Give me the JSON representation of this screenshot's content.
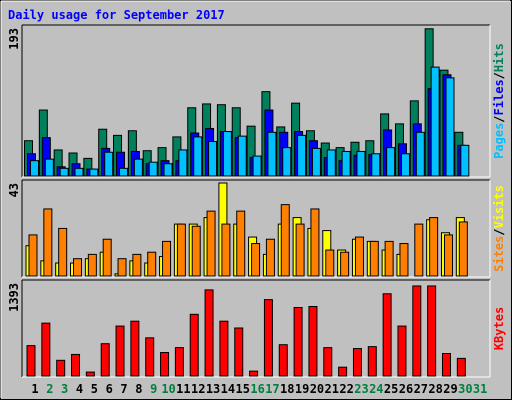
{
  "chart_data": [
    {
      "type": "bar",
      "title": "Daily usage for September 2017",
      "ylim": [
        0,
        193
      ],
      "yticks": [
        193
      ],
      "legend_separator": "/",
      "series": [
        {
          "name": "Pages",
          "color": "#00c0ff",
          "values": [
            20,
            22,
            10,
            10,
            9,
            31,
            10,
            22,
            18,
            16,
            34,
            51,
            45,
            58,
            52,
            26,
            57,
            37,
            53,
            36,
            34,
            32,
            32,
            29,
            37,
            29,
            57,
            142,
            128,
            40,
            0
          ]
        },
        {
          "name": "Files",
          "color": "#0000ff",
          "values": [
            29,
            50,
            12,
            16,
            9,
            36,
            31,
            32,
            16,
            20,
            20,
            56,
            62,
            58,
            50,
            24,
            86,
            57,
            58,
            46,
            24,
            20,
            27,
            28,
            60,
            42,
            68,
            114,
            132,
            40,
            0
          ]
        },
        {
          "name": "Hits",
          "color": "#00805c",
          "values": [
            46,
            86,
            34,
            30,
            23,
            61,
            53,
            59,
            33,
            37,
            51,
            89,
            94,
            93,
            89,
            65,
            110,
            64,
            95,
            59,
            43,
            37,
            44,
            46,
            81,
            68,
            98,
            192,
            138,
            57,
            0
          ]
        }
      ]
    },
    {
      "type": "bar",
      "ylim": [
        0,
        43
      ],
      "yticks": [
        43
      ],
      "legend_separator": "/",
      "series": [
        {
          "name": "Sites",
          "color": "#ff8000",
          "values": [
            19,
            31,
            22,
            8,
            10,
            17,
            8,
            10,
            11,
            16,
            24,
            23,
            30,
            24,
            30,
            15,
            17,
            33,
            24,
            31,
            12,
            11,
            18,
            16,
            16,
            15,
            24,
            27,
            19,
            25,
            0
          ]
        },
        {
          "name": "Visits",
          "color": "#ffff00",
          "values": [
            14,
            7,
            6,
            6,
            8,
            11,
            1,
            7,
            6,
            9,
            24,
            24,
            27,
            43,
            24,
            18,
            10,
            24,
            27,
            22,
            21,
            12,
            17,
            16,
            12,
            10,
            0,
            26,
            20,
            27,
            0
          ]
        }
      ]
    },
    {
      "type": "bar",
      "ylim": [
        0,
        1393
      ],
      "yticks": [
        1393
      ],
      "categories": [
        1,
        2,
        3,
        4,
        5,
        6,
        7,
        8,
        9,
        10,
        11,
        12,
        13,
        14,
        15,
        16,
        17,
        18,
        19,
        20,
        21,
        22,
        23,
        24,
        25,
        26,
        27,
        28,
        29,
        30,
        31
      ],
      "category_colors": [
        "#000000",
        "#008040",
        "#008040",
        "#000000",
        "#000000",
        "#000000",
        "#000000",
        "#000000",
        "#008040",
        "#008040",
        "#000000",
        "#000000",
        "#000000",
        "#000000",
        "#000000",
        "#008040",
        "#008040",
        "#000000",
        "#000000",
        "#000000",
        "#000000",
        "#000000",
        "#008040",
        "#008040",
        "#000000",
        "#000000",
        "#000000",
        "#000000",
        "#000000",
        "#008040",
        "#008040"
      ],
      "series": [
        {
          "name": "KBytes",
          "color": "#ff0000",
          "values": [
            455,
            792,
            235,
            323,
            59,
            484,
            748,
            821,
            572,
            352,
            425,
            924,
            1290,
            821,
            719,
            73,
            1144,
            469,
            1026,
            1041,
            425,
            132,
            411,
            440,
            1232,
            748,
            1349,
            1349,
            337,
            264,
            0
          ]
        }
      ]
    }
  ]
}
